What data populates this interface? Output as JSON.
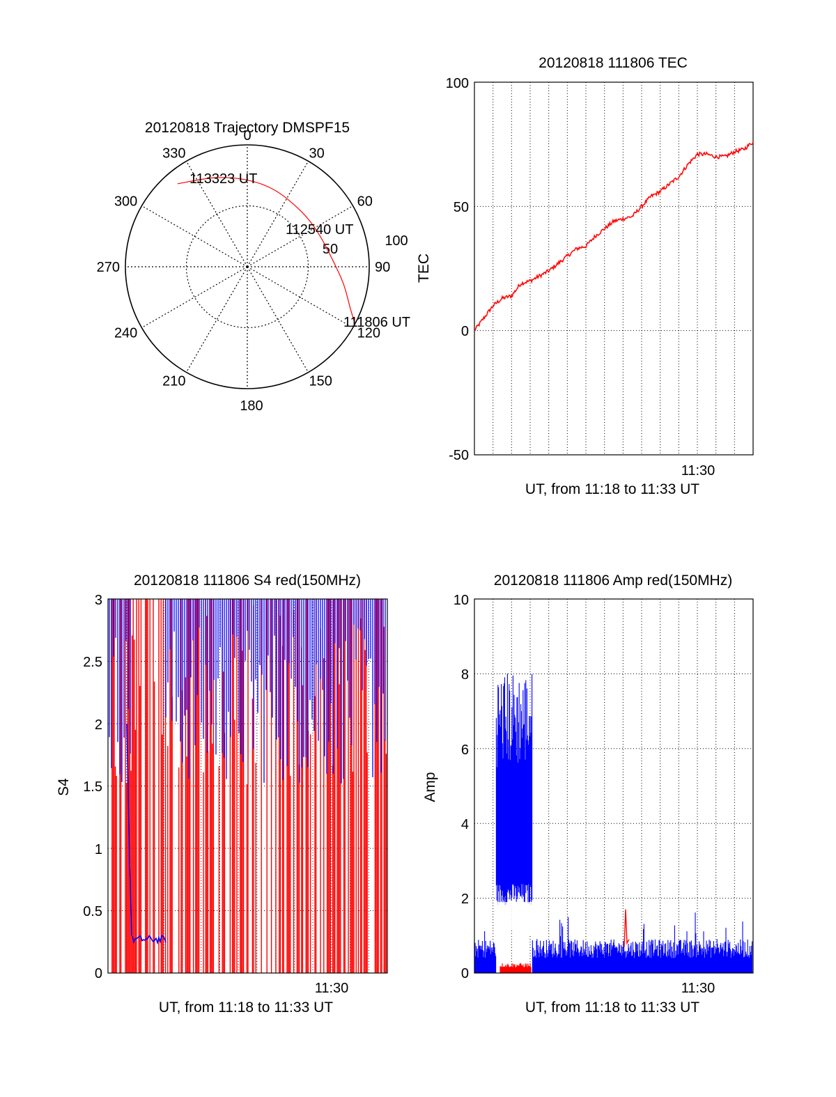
{
  "colors": {
    "red": "#ff0000",
    "blue": "#0000ff",
    "axis": "#000000",
    "grid": "#000000"
  },
  "chart_data": [
    {
      "type": "polar",
      "title": "20120818 Trajectory DMSPF15",
      "angle_labels": [
        "0",
        "30",
        "60",
        "90",
        "120",
        "150",
        "180",
        "210",
        "240",
        "270",
        "300",
        "330"
      ],
      "radius_labels": [
        "50",
        "100"
      ],
      "rlim": [
        0,
        100
      ],
      "annotations": [
        "113323 UT",
        "112540 UT",
        "111806 UT"
      ],
      "series": [
        {
          "color": "red",
          "points": [
            {
              "az": 320,
              "el": 10,
              "label": "113323 UT"
            },
            {
              "az": 340,
              "el": 20
            },
            {
              "az": 0,
              "el": 26
            },
            {
              "az": 20,
              "el": 30
            },
            {
              "az": 45,
              "el": 33,
              "label": "112540 UT"
            },
            {
              "az": 65,
              "el": 32
            },
            {
              "az": 85,
              "el": 27
            },
            {
              "az": 100,
              "el": 18
            },
            {
              "az": 112,
              "el": 8
            },
            {
              "az": 118,
              "el": 0,
              "label": "111806 UT"
            }
          ]
        }
      ]
    },
    {
      "type": "line",
      "title": "20120818 111806 TEC",
      "ylabel": "TEC",
      "xlabel": "UT, from 11:18 to 11:33 UT",
      "ylim": [
        -50,
        100
      ],
      "yticks": [
        "100",
        "50",
        "0",
        "-50"
      ],
      "xticks": [
        "11:30"
      ],
      "grid": true,
      "series": [
        {
          "color": "red",
          "x": [
            0,
            0.5,
            1,
            1.5,
            2,
            2.5,
            3,
            3.5,
            4,
            4.5,
            5,
            5.5,
            6,
            6.5,
            7,
            7.5,
            8,
            8.5,
            9,
            9.5,
            10,
            10.5,
            11,
            11.5,
            12,
            12.5,
            13,
            13.5,
            14,
            14.5,
            15
          ],
          "y": [
            0,
            5,
            10,
            13,
            14,
            19,
            20,
            22,
            24,
            27,
            30,
            33,
            34,
            38,
            41,
            44,
            45,
            46,
            50,
            54,
            56,
            59,
            62,
            67,
            71,
            71,
            70,
            70,
            72,
            73,
            76
          ]
        }
      ]
    },
    {
      "type": "line",
      "title": "20120818 111806 S4 red(150MHz)",
      "ylabel": "S4",
      "xlabel": "UT, from 11:18 to 11:33 UT",
      "ylim": [
        0,
        3
      ],
      "yticks": [
        "3",
        "2.5",
        "2",
        "1.5",
        "1",
        "0.5",
        "0"
      ],
      "xticks": [
        "11:30"
      ],
      "grid": true,
      "series": [
        {
          "color": "red",
          "description": "dense spikes between 0 and 3"
        },
        {
          "color": "blue",
          "description": "dense spikes 1.5–3; plateau near 0.28 from 11:19 to 11:20"
        }
      ]
    },
    {
      "type": "line",
      "title": "20120818 111806 Amp red(150MHz)",
      "ylabel": "Amp",
      "xlabel": "UT, from 11:18 to 11:33 UT",
      "ylim": [
        0,
        10
      ],
      "yticks": [
        "10",
        "8",
        "6",
        "4",
        "2",
        "0"
      ],
      "xticks": [
        "11:30"
      ],
      "grid": true,
      "series": [
        {
          "color": "blue",
          "description": "noise ~0–1.3; burst 2–8.5 from 11:19.3 to 11:21"
        },
        {
          "color": "red",
          "description": "~0.2 during burst; spike 1.7 near 11:26"
        }
      ]
    }
  ]
}
